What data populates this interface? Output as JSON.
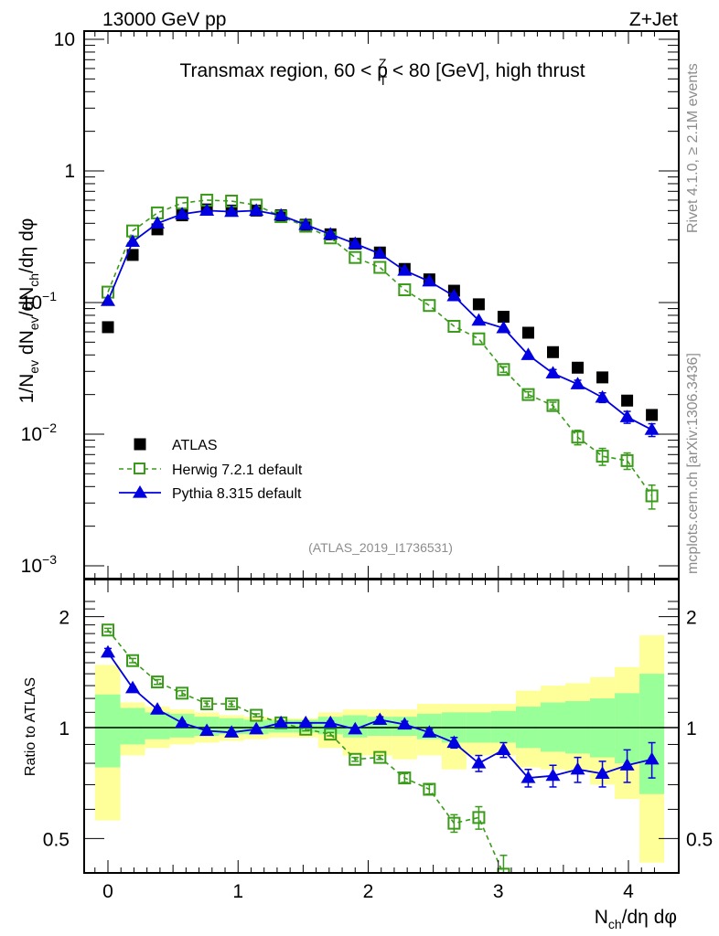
{
  "header": {
    "left": "13000 GeV pp",
    "right": "Z+Jet"
  },
  "side_labels": {
    "rivet": "Rivet 4.1.0, ≥ 2.1M events",
    "mcplots": "mcplots.cern.ch [arXiv:1306.3436]"
  },
  "colors": {
    "atlas": "#000000",
    "herwig": "#3a9a1a",
    "pythia": "#0000e0",
    "band_outer": "#ffff99",
    "band_inner": "#99ff99"
  },
  "chart_data": [
    {
      "type": "scatter",
      "panel": "main",
      "title": "Transmax region, 60 < p_T^Z < 80 [GeV], high thrust",
      "title_parts": {
        "before": "Transmax region, 60 < p",
        "sup": "Z",
        "sub": "T",
        "after": " < 80 [GeV], high thrust"
      },
      "ylabel": "1/N_ev dN_ev/dN_ch/dη dφ",
      "ylabel_parts": {
        "a": "1/N",
        "a_sub": "ev",
        "b": " dN",
        "b_sub": "ev",
        "c": "/dN",
        "c_sub": "ch",
        "d": "/dη dφ"
      },
      "yscale": "log",
      "ylim": [
        0.001,
        10
      ],
      "xlim": [
        -0.18,
        4.38
      ],
      "yticks": [
        {
          "value": 10,
          "label": "10",
          "exp": ""
        },
        {
          "value": 1,
          "label": "1",
          "exp": ""
        },
        {
          "value": 0.1,
          "label": "10",
          "exp": "−1"
        },
        {
          "value": 0.01,
          "label": "10",
          "exp": "−2"
        },
        {
          "value": 0.001,
          "label": "10",
          "exp": "−3"
        }
      ],
      "legend_position": "bottom-left",
      "legend": [
        {
          "key": "atlas",
          "label": "ATLAS"
        },
        {
          "key": "herwig",
          "label": "Herwig 7.2.1 default"
        },
        {
          "key": "pythia",
          "label": "Pythia 8.315 default"
        }
      ],
      "annotation": "(ATLAS_2019_I1736531)",
      "x": [
        0.0,
        0.19,
        0.38,
        0.57,
        0.76,
        0.95,
        1.14,
        1.33,
        1.52,
        1.71,
        1.9,
        2.09,
        2.28,
        2.47,
        2.66,
        2.85,
        3.04,
        3.23,
        3.42,
        3.61,
        3.8,
        3.99,
        4.18
      ],
      "series": [
        {
          "name": "ATLAS",
          "key": "atlas",
          "marker": "filled-square",
          "values": [
            0.065,
            0.23,
            0.36,
            0.46,
            0.51,
            0.5,
            0.5,
            0.46,
            0.39,
            0.33,
            0.28,
            0.24,
            0.18,
            0.15,
            0.123,
            0.097,
            0.078,
            0.059,
            0.042,
            0.032,
            0.027,
            0.018,
            0.014
          ]
        },
        {
          "name": "Herwig 7.2.1 default",
          "key": "herwig",
          "marker": "open-square",
          "line": "dashed",
          "values": [
            0.12,
            0.35,
            0.48,
            0.57,
            0.6,
            0.59,
            0.55,
            0.45,
            0.38,
            0.31,
            0.22,
            0.185,
            0.125,
            0.095,
            0.066,
            0.053,
            0.031,
            0.02,
            0.0165,
            0.0095,
            0.0068,
            0.0063,
            0.0034
          ],
          "errors": [
            0,
            0,
            0,
            0,
            0,
            0,
            0,
            0,
            0,
            0,
            0,
            0,
            0,
            0,
            0,
            0,
            0.0015,
            0.001,
            0.001,
            0.0012,
            0.001,
            0.0009,
            0.0007
          ]
        },
        {
          "name": "Pythia 8.315 default",
          "key": "pythia",
          "marker": "filled-triangle",
          "line": "solid",
          "values": [
            0.103,
            0.29,
            0.4,
            0.47,
            0.5,
            0.49,
            0.5,
            0.46,
            0.39,
            0.33,
            0.28,
            0.235,
            0.175,
            0.145,
            0.112,
            0.073,
            0.064,
            0.04,
            0.029,
            0.024,
            0.019,
            0.0135,
            0.0108
          ],
          "errors": [
            0,
            0,
            0,
            0,
            0,
            0,
            0,
            0,
            0,
            0,
            0,
            0,
            0,
            0,
            0,
            0,
            0,
            0,
            0.002,
            0.0017,
            0.0016,
            0.0014,
            0.0012
          ]
        }
      ]
    },
    {
      "type": "scatter",
      "panel": "ratio",
      "ylabel": "Ratio to ATLAS",
      "xlabel": "N_ch/dη dφ",
      "xlabel_parts": {
        "a": "N",
        "a_sub": "ch",
        "b": "/dη dφ"
      },
      "yscale": "log",
      "ylim": [
        0.43,
        2.35
      ],
      "yticks": [
        {
          "value": 2,
          "label": "2"
        },
        {
          "value": 1,
          "label": "1"
        },
        {
          "value": 0.5,
          "label": "0.5"
        }
      ],
      "xticks": [
        {
          "value": 0,
          "label": "0"
        },
        {
          "value": 1,
          "label": "1"
        },
        {
          "value": 2,
          "label": "2"
        },
        {
          "value": 3,
          "label": "3"
        },
        {
          "value": 4,
          "label": "4"
        }
      ],
      "reference_line": 1,
      "bins": [
        [
          -0.1,
          0.095
        ],
        [
          0.095,
          0.285
        ],
        [
          0.285,
          0.475
        ],
        [
          0.475,
          0.665
        ],
        [
          0.665,
          0.855
        ],
        [
          0.855,
          1.045
        ],
        [
          1.045,
          1.235
        ],
        [
          1.235,
          1.425
        ],
        [
          1.425,
          1.615
        ],
        [
          1.615,
          1.805
        ],
        [
          1.805,
          1.995
        ],
        [
          1.995,
          2.185
        ],
        [
          2.185,
          2.375
        ],
        [
          2.375,
          2.565
        ],
        [
          2.565,
          2.755
        ],
        [
          2.755,
          2.945
        ],
        [
          2.945,
          3.135
        ],
        [
          3.135,
          3.325
        ],
        [
          3.325,
          3.515
        ],
        [
          3.515,
          3.705
        ],
        [
          3.705,
          3.895
        ],
        [
          3.895,
          4.085
        ],
        [
          4.085,
          4.275
        ]
      ],
      "band_inner": {
        "low": [
          0.78,
          0.9,
          0.93,
          0.94,
          0.95,
          0.96,
          0.96,
          0.97,
          0.97,
          0.96,
          0.94,
          0.95,
          0.95,
          0.93,
          0.91,
          0.91,
          0.91,
          0.88,
          0.86,
          0.85,
          0.83,
          0.8,
          0.66
        ],
        "high": [
          1.23,
          1.13,
          1.1,
          1.09,
          1.07,
          1.06,
          1.05,
          1.05,
          1.05,
          1.07,
          1.08,
          1.07,
          1.07,
          1.09,
          1.1,
          1.1,
          1.11,
          1.14,
          1.17,
          1.18,
          1.2,
          1.24,
          1.4
        ]
      },
      "band_outer": {
        "low": [
          0.56,
          0.84,
          0.88,
          0.9,
          0.91,
          0.92,
          0.93,
          0.94,
          0.94,
          0.88,
          0.84,
          0.84,
          0.82,
          0.84,
          0.77,
          0.84,
          0.84,
          0.78,
          0.77,
          0.76,
          0.7,
          0.64,
          0.32
        ],
        "high": [
          1.48,
          1.17,
          1.14,
          1.12,
          1.1,
          1.08,
          1.07,
          1.06,
          1.06,
          1.1,
          1.12,
          1.12,
          1.12,
          1.16,
          1.16,
          1.16,
          1.16,
          1.26,
          1.3,
          1.32,
          1.37,
          1.46,
          1.78
        ]
      },
      "series": [
        {
          "name": "Herwig 7.2.1 default",
          "key": "herwig",
          "values": [
            1.84,
            1.52,
            1.33,
            1.24,
            1.16,
            1.16,
            1.08,
            1.03,
            0.99,
            0.96,
            0.82,
            0.83,
            0.73,
            0.68,
            0.55,
            0.57,
            0.4,
            null,
            null,
            null,
            null,
            null,
            null
          ],
          "errors": [
            0.02,
            0.02,
            0.02,
            0.02,
            0.02,
            0.02,
            0.01,
            0.01,
            0.01,
            0.01,
            0.01,
            0.01,
            0.02,
            0.02,
            0.03,
            0.04,
            0.05,
            0,
            0,
            0,
            0,
            0,
            0
          ]
        },
        {
          "name": "Pythia 8.315 default",
          "key": "pythia",
          "values": [
            1.6,
            1.28,
            1.12,
            1.03,
            0.98,
            0.97,
            0.99,
            1.03,
            1.03,
            1.03,
            0.99,
            1.05,
            1.02,
            0.97,
            0.91,
            0.8,
            0.87,
            0.73,
            0.74,
            0.77,
            0.75,
            0.79,
            0.82
          ],
          "errors": [
            0.04,
            0.01,
            0.01,
            0.01,
            0.01,
            0.01,
            0.01,
            0.01,
            0.01,
            0.01,
            0.01,
            0.02,
            0.02,
            0.02,
            0.03,
            0.04,
            0.04,
            0.04,
            0.05,
            0.06,
            0.06,
            0.08,
            0.09
          ]
        }
      ]
    }
  ]
}
